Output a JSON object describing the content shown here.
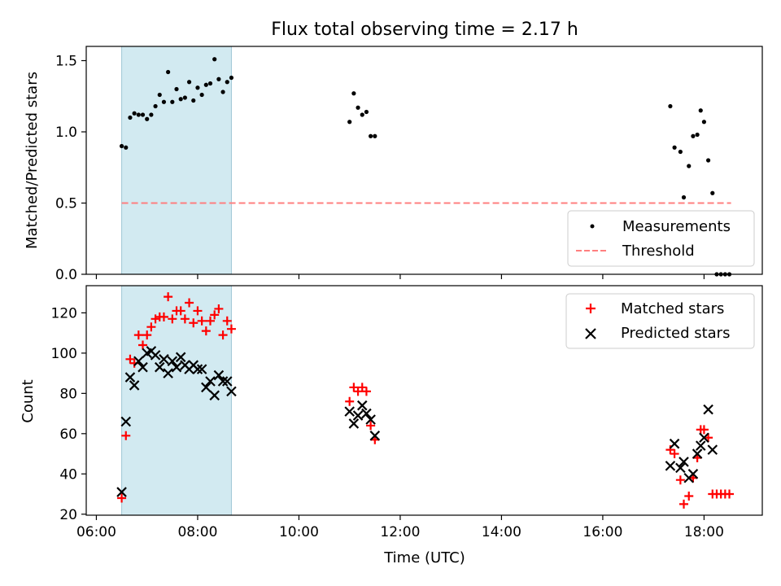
{
  "title": "Flux total observing time = 2.17 h",
  "colors": {
    "highlight_band": "#add8e6",
    "threshold": "#ff7f7f",
    "matched": "#ff0000",
    "predicted": "#000000",
    "measurements": "#000000"
  },
  "chart_data": [
    {
      "type": "scatter",
      "ylabel": "Matched/Predicted stars",
      "ylim": [
        0,
        1.6
      ],
      "yticks": [
        0.0,
        0.5,
        1.0,
        1.5
      ],
      "ytick_labels": [
        "0.0",
        "0.5",
        "1.0",
        "1.5"
      ],
      "xlim_hours": [
        5.8,
        19.15
      ],
      "shaded_interval": [
        "06:30",
        "08:40"
      ],
      "legend": {
        "location": "bottom-right",
        "entries": [
          "Measurements",
          "Threshold"
        ]
      },
      "threshold": {
        "name": "Threshold",
        "value": 0.5,
        "x_start": "06:30",
        "x_end": "18:32"
      },
      "series": [
        {
          "name": "Measurements",
          "marker": "dot",
          "points": [
            [
              "06:30",
              0.9
            ],
            [
              "06:35",
              0.89
            ],
            [
              "06:40",
              1.1
            ],
            [
              "06:45",
              1.13
            ],
            [
              "06:50",
              1.12
            ],
            [
              "06:55",
              1.12
            ],
            [
              "07:00",
              1.09
            ],
            [
              "07:05",
              1.12
            ],
            [
              "07:10",
              1.18
            ],
            [
              "07:15",
              1.26
            ],
            [
              "07:20",
              1.21
            ],
            [
              "07:25",
              1.42
            ],
            [
              "07:30",
              1.21
            ],
            [
              "07:35",
              1.3
            ],
            [
              "07:40",
              1.23
            ],
            [
              "07:45",
              1.24
            ],
            [
              "07:50",
              1.35
            ],
            [
              "07:55",
              1.22
            ],
            [
              "08:00",
              1.31
            ],
            [
              "08:05",
              1.26
            ],
            [
              "08:10",
              1.33
            ],
            [
              "08:15",
              1.34
            ],
            [
              "08:20",
              1.51
            ],
            [
              "08:25",
              1.37
            ],
            [
              "08:30",
              1.28
            ],
            [
              "08:35",
              1.35
            ],
            [
              "08:40",
              1.38
            ],
            [
              "11:00",
              1.07
            ],
            [
              "11:05",
              1.27
            ],
            [
              "11:10",
              1.17
            ],
            [
              "11:15",
              1.12
            ],
            [
              "11:20",
              1.14
            ],
            [
              "11:25",
              0.97
            ],
            [
              "11:30",
              0.97
            ],
            [
              "17:20",
              1.18
            ],
            [
              "17:25",
              0.89
            ],
            [
              "17:32",
              0.86
            ],
            [
              "17:36",
              0.54
            ],
            [
              "17:42",
              0.76
            ],
            [
              "17:47",
              0.97
            ],
            [
              "17:52",
              0.98
            ],
            [
              "17:56",
              1.15
            ],
            [
              "18:00",
              1.07
            ],
            [
              "18:05",
              0.8
            ],
            [
              "18:10",
              0.57
            ],
            [
              "18:15",
              0.0
            ],
            [
              "18:20",
              0.0
            ],
            [
              "18:25",
              0.0
            ],
            [
              "18:30",
              0.0
            ]
          ]
        }
      ]
    },
    {
      "type": "scatter",
      "xlabel": "Time (UTC)",
      "ylabel": "Count",
      "ylim": [
        19.5,
        133.5
      ],
      "yticks": [
        20,
        40,
        60,
        80,
        100,
        120
      ],
      "ytick_labels": [
        "20",
        "40",
        "60",
        "80",
        "100",
        "120"
      ],
      "xlim_hours": [
        5.8,
        19.15
      ],
      "xticks": [
        "06:00",
        "08:00",
        "10:00",
        "12:00",
        "14:00",
        "16:00",
        "18:00"
      ],
      "xtick_labels": [
        "06:00",
        "08:00",
        "10:00",
        "12:00",
        "14:00",
        "16:00",
        "18:00"
      ],
      "shaded_interval": [
        "06:30",
        "08:40"
      ],
      "legend": {
        "location": "top-right",
        "entries": [
          "Matched stars",
          "Predicted stars"
        ]
      },
      "series": [
        {
          "name": "Matched stars",
          "marker": "plus",
          "points": [
            [
              "06:30",
              28
            ],
            [
              "06:35",
              59
            ],
            [
              "06:40",
              97
            ],
            [
              "06:45",
              95
            ],
            [
              "06:50",
              109
            ],
            [
              "06:55",
              104
            ],
            [
              "07:00",
              109
            ],
            [
              "07:05",
              113
            ],
            [
              "07:10",
              117
            ],
            [
              "07:15",
              118
            ],
            [
              "07:20",
              118
            ],
            [
              "07:25",
              128
            ],
            [
              "07:30",
              117
            ],
            [
              "07:35",
              121
            ],
            [
              "07:40",
              121
            ],
            [
              "07:45",
              117
            ],
            [
              "07:50",
              125
            ],
            [
              "07:55",
              115
            ],
            [
              "08:00",
              121
            ],
            [
              "08:05",
              116
            ],
            [
              "08:10",
              111
            ],
            [
              "08:15",
              116
            ],
            [
              "08:20",
              119
            ],
            [
              "08:25",
              122
            ],
            [
              "08:30",
              109
            ],
            [
              "08:35",
              116
            ],
            [
              "08:40",
              112
            ],
            [
              "11:00",
              76
            ],
            [
              "11:05",
              83
            ],
            [
              "11:10",
              81
            ],
            [
              "11:15",
              83
            ],
            [
              "11:20",
              81
            ],
            [
              "11:25",
              64
            ],
            [
              "11:30",
              57
            ],
            [
              "17:20",
              52
            ],
            [
              "17:25",
              50
            ],
            [
              "17:32",
              37
            ],
            [
              "17:36",
              25
            ],
            [
              "17:42",
              29
            ],
            [
              "17:47",
              38
            ],
            [
              "17:52",
              48
            ],
            [
              "17:56",
              62
            ],
            [
              "18:00",
              62
            ],
            [
              "18:05",
              58
            ],
            [
              "18:10",
              30
            ],
            [
              "18:15",
              30
            ],
            [
              "18:20",
              30
            ],
            [
              "18:25",
              30
            ],
            [
              "18:30",
              30
            ]
          ]
        },
        {
          "name": "Predicted stars",
          "marker": "x",
          "points": [
            [
              "06:30",
              31
            ],
            [
              "06:35",
              66
            ],
            [
              "06:40",
              88
            ],
            [
              "06:45",
              84
            ],
            [
              "06:50",
              96
            ],
            [
              "06:55",
              93
            ],
            [
              "07:00",
              100
            ],
            [
              "07:05",
              101
            ],
            [
              "07:10",
              99
            ],
            [
              "07:15",
              93
            ],
            [
              "07:20",
              97
            ],
            [
              "07:25",
              90
            ],
            [
              "07:30",
              96
            ],
            [
              "07:35",
              93
            ],
            [
              "07:40",
              98
            ],
            [
              "07:45",
              94
            ],
            [
              "07:50",
              92
            ],
            [
              "07:55",
              94
            ],
            [
              "08:00",
              92
            ],
            [
              "08:05",
              92
            ],
            [
              "08:10",
              83
            ],
            [
              "08:15",
              86
            ],
            [
              "08:20",
              79
            ],
            [
              "08:25",
              89
            ],
            [
              "08:30",
              86
            ],
            [
              "08:35",
              86
            ],
            [
              "08:40",
              81
            ],
            [
              "11:00",
              71
            ],
            [
              "11:05",
              65
            ],
            [
              "11:10",
              69
            ],
            [
              "11:15",
              74
            ],
            [
              "11:20",
              70
            ],
            [
              "11:25",
              67
            ],
            [
              "11:30",
              59
            ],
            [
              "17:20",
              44
            ],
            [
              "17:25",
              55
            ],
            [
              "17:32",
              43
            ],
            [
              "17:36",
              46
            ],
            [
              "17:42",
              38
            ],
            [
              "17:47",
              40
            ],
            [
              "17:52",
              50
            ],
            [
              "17:56",
              54
            ],
            [
              "18:00",
              58
            ],
            [
              "18:05",
              72
            ],
            [
              "18:10",
              52
            ]
          ]
        }
      ]
    }
  ]
}
